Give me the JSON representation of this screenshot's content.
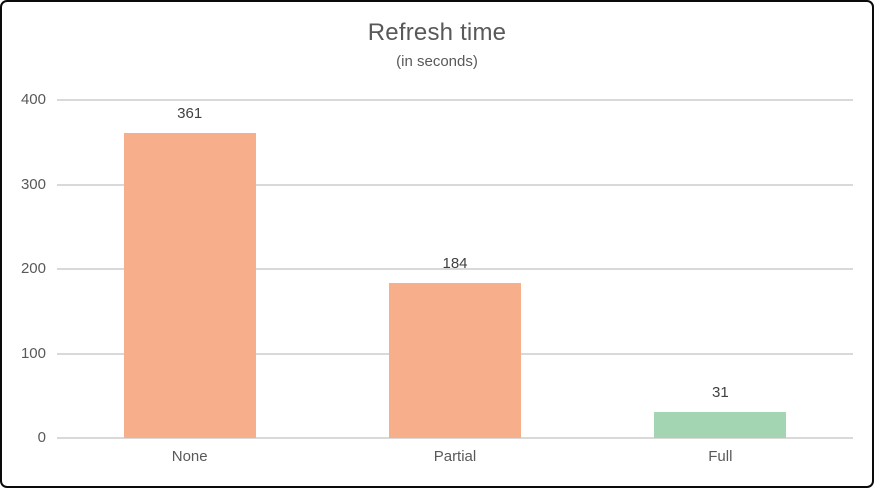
{
  "window": {
    "background": "#FFFFFF",
    "border_color": "#0A0A0A"
  },
  "chart_data": {
    "type": "bar",
    "title": "Refresh time",
    "subtitle": "(in seconds)",
    "categories": [
      "None",
      "Partial",
      "Full"
    ],
    "values": [
      361,
      184,
      31
    ],
    "data_labels": [
      "361",
      "184",
      "31"
    ],
    "bar_colors": [
      "#F7AF8B",
      "#F7AF8B",
      "#A3D5B3"
    ],
    "ylim": [
      0,
      400
    ],
    "yticks": [
      0,
      100,
      200,
      300,
      400
    ],
    "grid": true,
    "legend": "none",
    "gridline_color": "#D9D9D9",
    "axis_text_color": "#595959",
    "data_label_color": "#404040",
    "title_color": "#595959"
  }
}
